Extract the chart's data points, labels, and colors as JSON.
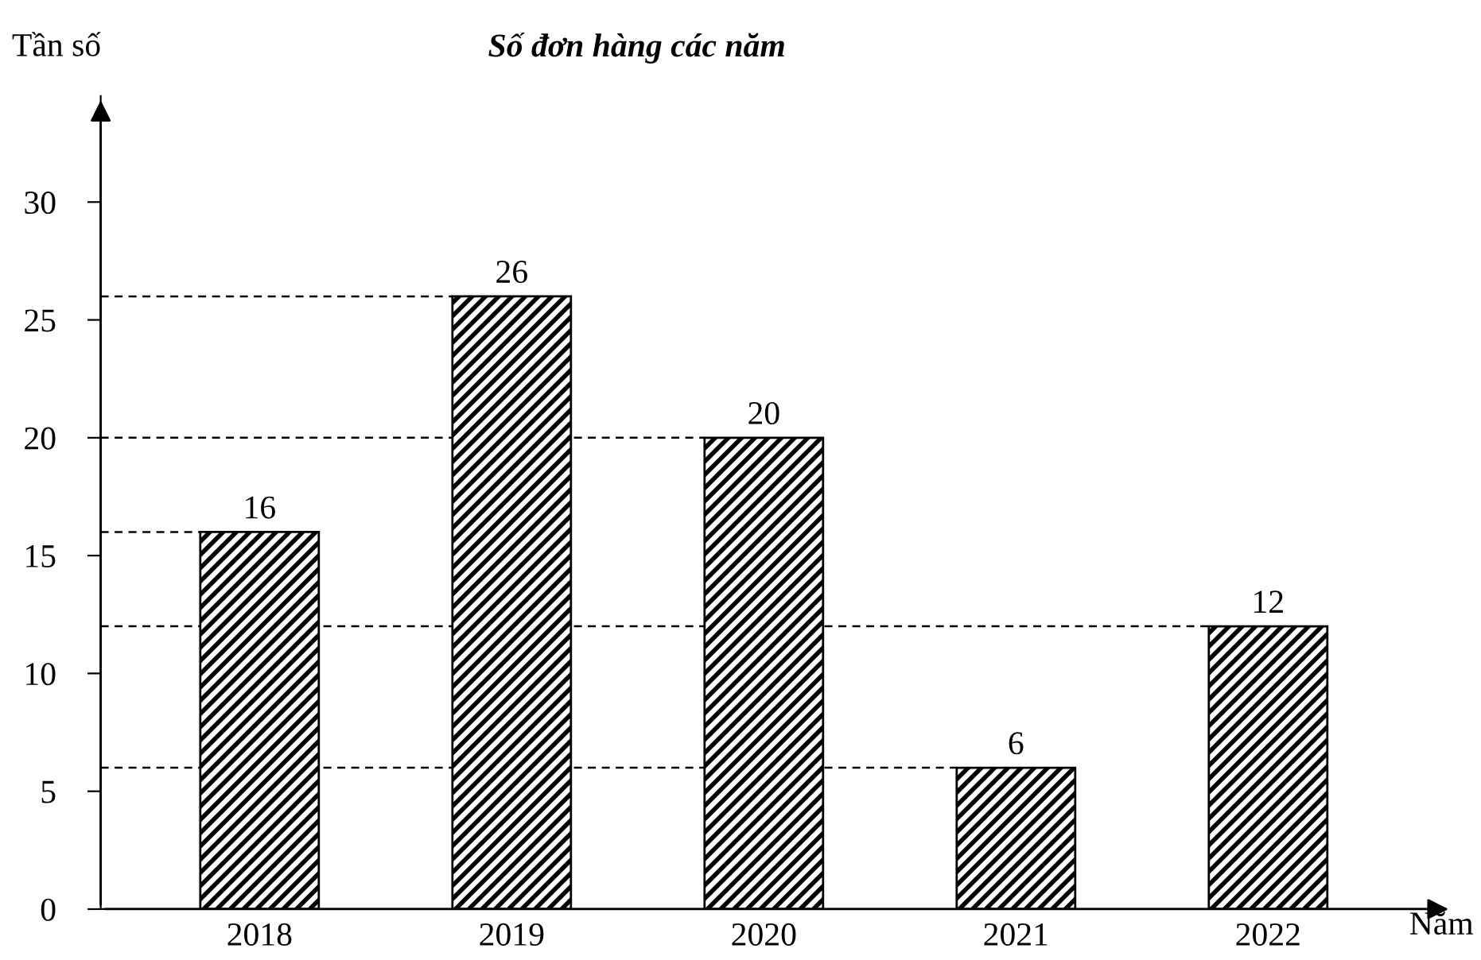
{
  "chart_data": {
    "type": "bar",
    "title": "Số đơn hàng các năm",
    "xlabel": "Năm",
    "ylabel": "Tần số",
    "categories": [
      "2018",
      "2019",
      "2020",
      "2021",
      "2022"
    ],
    "values": [
      16,
      26,
      20,
      6,
      12
    ],
    "color": "#000000",
    "ylim": [
      0,
      34.5
    ],
    "yticks": [
      0,
      5,
      10,
      15,
      20,
      25,
      30
    ],
    "data_labels": true,
    "grid": false,
    "ref_lines": [
      {
        "axis": "y",
        "value": 26,
        "line_style": "dashed"
      },
      {
        "axis": "y",
        "value": 20,
        "line_style": "dashed"
      },
      {
        "axis": "y",
        "value": 16,
        "line_style": "dashed"
      },
      {
        "axis": "y",
        "value": 12,
        "line_style": "dashed"
      },
      {
        "axis": "y",
        "value": 6,
        "line_style": "dashed"
      }
    ]
  }
}
